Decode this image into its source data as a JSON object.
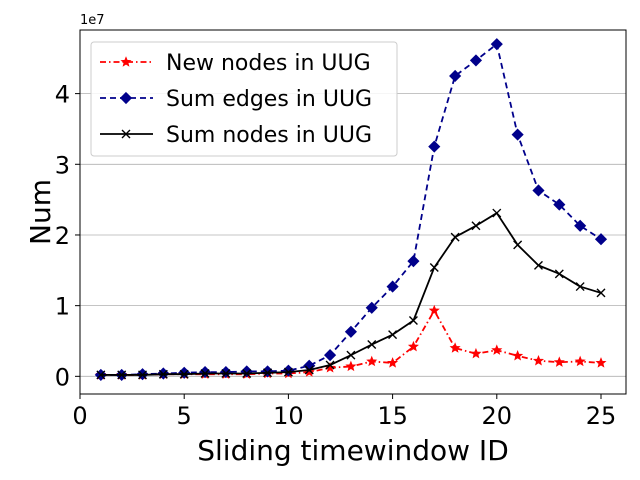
{
  "chart_data": {
    "type": "line",
    "xlabel": "Sliding timewindow ID",
    "ylabel": "Num",
    "y_multiplier_label": "1e7",
    "y_multiplier": 10000000,
    "xlim": [
      0,
      26.2
    ],
    "ylim": [
      -0.25,
      4.9
    ],
    "x_ticks": [
      0,
      5,
      10,
      15,
      20,
      25
    ],
    "y_ticks": [
      0,
      1,
      2,
      3,
      4
    ],
    "grid": "horizontal",
    "legend_position": "top-left",
    "x": [
      1,
      2,
      3,
      4,
      5,
      6,
      7,
      8,
      9,
      10,
      11,
      12,
      13,
      14,
      15,
      16,
      17,
      18,
      19,
      20,
      21,
      22,
      23,
      24,
      25
    ],
    "series": [
      {
        "name": "New nodes in UUG",
        "color": "#ff0000",
        "line_style": "dashdot",
        "marker": "star",
        "values": [
          0.02,
          0.02,
          0.02,
          0.03,
          0.03,
          0.03,
          0.03,
          0.03,
          0.04,
          0.04,
          0.06,
          0.12,
          0.14,
          0.21,
          0.19,
          0.42,
          0.93,
          0.4,
          0.32,
          0.37,
          0.29,
          0.22,
          0.2,
          0.21,
          0.19
        ]
      },
      {
        "name": "Sum edges in UUG",
        "color": "#00008b",
        "line_style": "dashed",
        "marker": "diamond",
        "values": [
          0.02,
          0.02,
          0.03,
          0.04,
          0.05,
          0.06,
          0.06,
          0.07,
          0.07,
          0.08,
          0.15,
          0.3,
          0.63,
          0.97,
          1.27,
          1.63,
          3.25,
          4.25,
          4.47,
          4.7,
          3.42,
          2.63,
          2.43,
          2.13,
          1.94
        ]
      },
      {
        "name": "Sum nodes in UUG",
        "color": "#000000",
        "line_style": "solid",
        "marker": "x",
        "values": [
          0.02,
          0.02,
          0.02,
          0.03,
          0.03,
          0.04,
          0.04,
          0.04,
          0.05,
          0.06,
          0.09,
          0.16,
          0.3,
          0.45,
          0.59,
          0.79,
          1.54,
          1.97,
          2.13,
          2.31,
          1.86,
          1.57,
          1.45,
          1.27,
          1.18
        ]
      }
    ]
  }
}
